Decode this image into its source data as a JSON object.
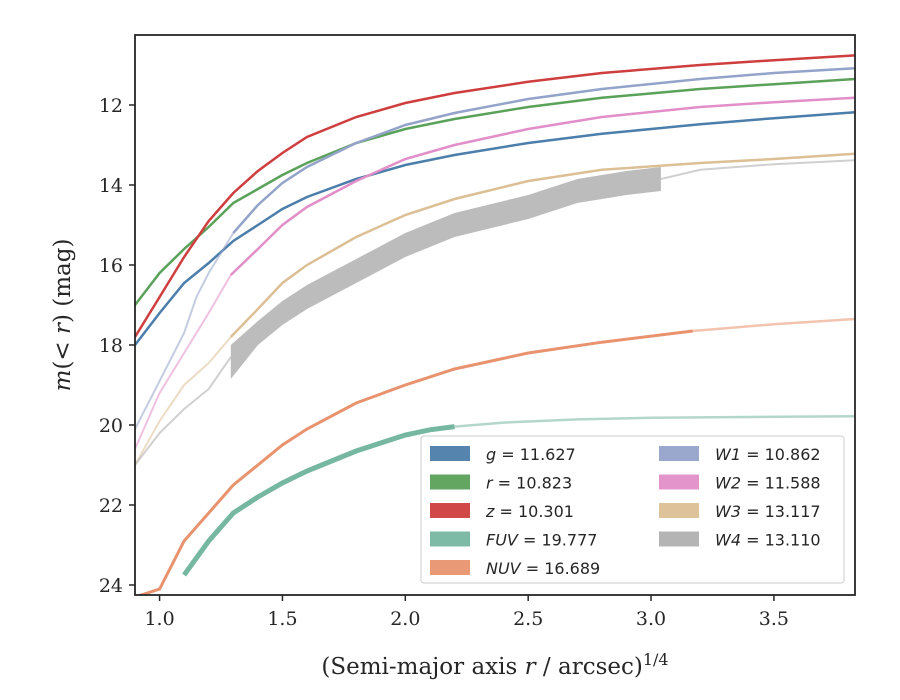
{
  "chart_data": {
    "type": "line",
    "title": "",
    "xlabel": "(Semi-major axis r / arcsec)^1/4",
    "ylabel": "m(< r) (mag)",
    "xlim": [
      0.9,
      3.83
    ],
    "ylim": [
      24.25,
      10.25
    ],
    "y_inverted": true,
    "xticks": [
      "1.0",
      "1.5",
      "2.0",
      "2.5",
      "3.0",
      "3.5"
    ],
    "xtick_values": [
      1.0,
      1.5,
      2.0,
      2.5,
      3.0,
      3.5
    ],
    "yticks": [
      "12",
      "14",
      "16",
      "18",
      "20",
      "22",
      "24"
    ],
    "ytick_values": [
      12,
      14,
      16,
      18,
      20,
      22,
      24
    ],
    "grid": false,
    "legend_position": "lower-right",
    "legend_columns": 2,
    "series": [
      {
        "name": "g = 11.627",
        "var": "g",
        "value": "11.627",
        "color": "#4c7eab",
        "points": [
          [
            0.9,
            18.0
          ],
          [
            1.0,
            17.2
          ],
          [
            1.1,
            16.45
          ],
          [
            1.2,
            15.95
          ],
          [
            1.3,
            15.4
          ],
          [
            1.4,
            15.0
          ],
          [
            1.5,
            14.6
          ],
          [
            1.6,
            14.3
          ],
          [
            1.8,
            13.85
          ],
          [
            2.0,
            13.5
          ],
          [
            2.2,
            13.25
          ],
          [
            2.5,
            12.95
          ],
          [
            2.8,
            12.72
          ],
          [
            3.2,
            12.48
          ],
          [
            3.5,
            12.33
          ],
          [
            3.83,
            12.18
          ]
        ],
        "extrapolated_from_x": 3.83
      },
      {
        "name": "r = 10.823",
        "var": "r",
        "value": "10.823",
        "color": "#5aa15a",
        "points": [
          [
            0.9,
            17.0
          ],
          [
            1.0,
            16.2
          ],
          [
            1.1,
            15.6
          ],
          [
            1.2,
            15.05
          ],
          [
            1.3,
            14.45
          ],
          [
            1.4,
            14.1
          ],
          [
            1.5,
            13.75
          ],
          [
            1.6,
            13.45
          ],
          [
            1.8,
            12.95
          ],
          [
            2.0,
            12.6
          ],
          [
            2.2,
            12.35
          ],
          [
            2.5,
            12.05
          ],
          [
            2.8,
            11.82
          ],
          [
            3.2,
            11.6
          ],
          [
            3.5,
            11.48
          ],
          [
            3.83,
            11.35
          ]
        ],
        "extrapolated_from_x": 3.83
      },
      {
        "name": "z = 10.301",
        "var": "z",
        "value": "10.301",
        "color": "#cf3e3e",
        "points": [
          [
            0.9,
            17.8
          ],
          [
            1.0,
            16.8
          ],
          [
            1.1,
            15.8
          ],
          [
            1.2,
            14.9
          ],
          [
            1.3,
            14.2
          ],
          [
            1.4,
            13.65
          ],
          [
            1.5,
            13.2
          ],
          [
            1.6,
            12.8
          ],
          [
            1.8,
            12.3
          ],
          [
            2.0,
            11.95
          ],
          [
            2.2,
            11.7
          ],
          [
            2.5,
            11.42
          ],
          [
            2.8,
            11.2
          ],
          [
            3.2,
            11.0
          ],
          [
            3.5,
            10.88
          ],
          [
            3.83,
            10.76
          ]
        ],
        "extrapolated_from_x": 3.83
      },
      {
        "name": "FUV = 19.777",
        "var": "FUV",
        "value": "19.777",
        "color": "#76b7a2",
        "points": [
          [
            1.1,
            23.75
          ],
          [
            1.2,
            22.9
          ],
          [
            1.3,
            22.2
          ],
          [
            1.4,
            21.8
          ],
          [
            1.5,
            21.45
          ],
          [
            1.6,
            21.15
          ],
          [
            1.7,
            20.9
          ],
          [
            1.8,
            20.65
          ],
          [
            1.9,
            20.45
          ],
          [
            2.0,
            20.25
          ],
          [
            2.1,
            20.12
          ],
          [
            2.2,
            20.04
          ],
          [
            2.4,
            19.94
          ],
          [
            2.7,
            19.86
          ],
          [
            3.0,
            19.82
          ],
          [
            3.4,
            19.8
          ],
          [
            3.83,
            19.78
          ]
        ],
        "extrapolated_from_x": 2.2
      },
      {
        "name": "NUV = 16.689",
        "var": "NUV",
        "value": "16.689",
        "color": "#e8936e",
        "points": [
          [
            0.9,
            24.3
          ],
          [
            1.0,
            24.1
          ],
          [
            1.1,
            22.9
          ],
          [
            1.2,
            22.2
          ],
          [
            1.3,
            21.5
          ],
          [
            1.4,
            21.0
          ],
          [
            1.5,
            20.5
          ],
          [
            1.6,
            20.1
          ],
          [
            1.8,
            19.45
          ],
          [
            2.0,
            19.0
          ],
          [
            2.2,
            18.6
          ],
          [
            2.5,
            18.2
          ],
          [
            2.8,
            17.93
          ],
          [
            3.17,
            17.65
          ],
          [
            3.5,
            17.48
          ],
          [
            3.83,
            17.35
          ]
        ],
        "extrapolated_from_x": 3.17
      },
      {
        "name": "W1 = 10.862",
        "var": "W1",
        "value": "10.862",
        "color": "#93a3c9",
        "points": [
          [
            0.9,
            20.1
          ],
          [
            1.0,
            18.9
          ],
          [
            1.1,
            17.7
          ],
          [
            1.15,
            16.8
          ],
          [
            1.2,
            16.2
          ],
          [
            1.3,
            15.2
          ],
          [
            1.4,
            14.5
          ],
          [
            1.5,
            13.95
          ],
          [
            1.6,
            13.55
          ],
          [
            1.8,
            12.95
          ],
          [
            2.0,
            12.5
          ],
          [
            2.2,
            12.2
          ],
          [
            2.5,
            11.85
          ],
          [
            2.8,
            11.6
          ],
          [
            3.2,
            11.35
          ],
          [
            3.5,
            11.2
          ],
          [
            3.83,
            11.08
          ]
        ],
        "extrapolated_from_x": 1.3
      },
      {
        "name": "W2 = 11.588",
        "var": "W2",
        "value": "11.588",
        "color": "#e28ec8",
        "points": [
          [
            0.9,
            20.6
          ],
          [
            1.0,
            19.2
          ],
          [
            1.1,
            18.2
          ],
          [
            1.2,
            17.2
          ],
          [
            1.29,
            16.25
          ],
          [
            1.4,
            15.6
          ],
          [
            1.5,
            15.0
          ],
          [
            1.6,
            14.55
          ],
          [
            1.8,
            13.9
          ],
          [
            2.0,
            13.35
          ],
          [
            2.2,
            13.0
          ],
          [
            2.5,
            12.6
          ],
          [
            2.8,
            12.3
          ],
          [
            3.2,
            12.05
          ],
          [
            3.5,
            11.93
          ],
          [
            3.83,
            11.82
          ]
        ],
        "extrapolated_from_x": 1.29
      },
      {
        "name": "W3 = 13.117",
        "var": "W3",
        "value": "13.117",
        "color": "#dcbf95",
        "points": [
          [
            0.9,
            21.0
          ],
          [
            1.0,
            19.9
          ],
          [
            1.1,
            19.0
          ],
          [
            1.2,
            18.45
          ],
          [
            1.29,
            17.8
          ],
          [
            1.4,
            17.1
          ],
          [
            1.5,
            16.45
          ],
          [
            1.6,
            16.0
          ],
          [
            1.8,
            15.3
          ],
          [
            2.0,
            14.75
          ],
          [
            2.2,
            14.35
          ],
          [
            2.5,
            13.9
          ],
          [
            2.8,
            13.62
          ],
          [
            3.2,
            13.45
          ],
          [
            3.5,
            13.35
          ],
          [
            3.83,
            13.22
          ]
        ],
        "extrapolated_from_x": 1.29
      },
      {
        "name": "W4 = 13.110",
        "var": "W4",
        "value": "13.110",
        "color": "#b0b0b0",
        "points": [
          [
            0.9,
            21.0
          ],
          [
            1.0,
            20.2
          ],
          [
            1.1,
            19.6
          ],
          [
            1.2,
            19.1
          ],
          [
            1.29,
            18.3
          ],
          [
            1.4,
            17.7
          ],
          [
            1.5,
            17.2
          ],
          [
            1.6,
            16.8
          ],
          [
            1.8,
            16.15
          ],
          [
            2.0,
            15.5
          ],
          [
            2.2,
            15.0
          ],
          [
            2.5,
            14.55
          ],
          [
            2.7,
            14.15
          ],
          [
            2.9,
            13.95
          ],
          [
            3.04,
            13.85
          ],
          [
            3.2,
            13.62
          ],
          [
            3.5,
            13.48
          ],
          [
            3.83,
            13.38
          ]
        ],
        "extrapolated_from_x": 3.04,
        "band_from_x": 1.29
      }
    ]
  }
}
